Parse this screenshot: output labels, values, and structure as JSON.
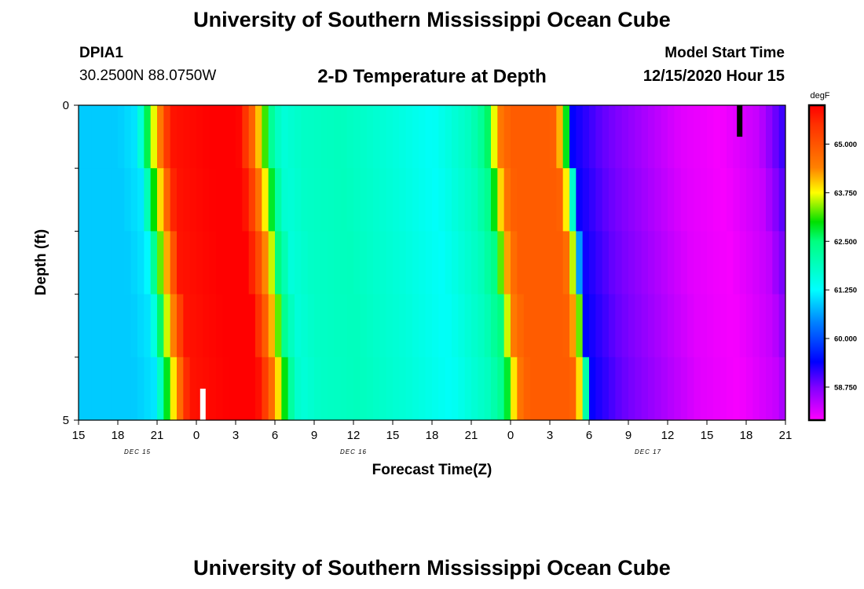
{
  "header": {
    "title": "University of Southern Mississippi Ocean Cube",
    "station_id": "DPIA1",
    "coordinates": "30.2500N 88.0750W",
    "subtitle": "2-D Temperature at Depth",
    "start_label": "Model Start Time",
    "start_value": "12/15/2020 Hour 15"
  },
  "footer": {
    "title": "University of Southern Mississippi Ocean Cube"
  },
  "chart_data": {
    "type": "heatmap",
    "title": "2-D Temperature at Depth",
    "xlabel": "Forecast Time(Z)",
    "ylabel": "Depth (ft)",
    "x_tick_labels": [
      "15",
      "18",
      "21",
      "0",
      "3",
      "6",
      "9",
      "12",
      "15",
      "18",
      "21",
      "0",
      "3",
      "6",
      "9",
      "12",
      "15",
      "18",
      "21"
    ],
    "x_hours_start": 15,
    "x_hours_step": 3,
    "x_range_hours": [
      0,
      54
    ],
    "date_labels": [
      {
        "label": "DEC 15",
        "hour": 4.5
      },
      {
        "label": "DEC 16",
        "hour": 21
      },
      {
        "label": "DEC 17",
        "hour": 43.5
      }
    ],
    "y_range": [
      0,
      5
    ],
    "y_tick_labels": [
      "0",
      "5"
    ],
    "y_minor_ticks": [
      1,
      2,
      3,
      4
    ],
    "depth_levels": [
      0,
      1,
      2,
      3,
      4,
      5
    ],
    "colorbar": {
      "unit": "degF",
      "min": 57.9,
      "max": 66.0,
      "tick_values": [
        58.75,
        60.0,
        61.25,
        62.5,
        63.75,
        65.0
      ],
      "tick_labels": [
        "58.750",
        "60.000",
        "61.250",
        "62.500",
        "63.750",
        "65.000"
      ],
      "colors": [
        {
          "v": 57.9,
          "c": "#ff00ff"
        },
        {
          "v": 58.75,
          "c": "#8000ff"
        },
        {
          "v": 59.4,
          "c": "#0000ff"
        },
        {
          "v": 60.4,
          "c": "#0080ff"
        },
        {
          "v": 61.25,
          "c": "#00ffff"
        },
        {
          "v": 62.5,
          "c": "#00ff80"
        },
        {
          "v": 63.0,
          "c": "#00e000"
        },
        {
          "v": 63.75,
          "c": "#ffff00"
        },
        {
          "v": 64.4,
          "c": "#ff8000"
        },
        {
          "v": 65.5,
          "c": "#ff3000"
        },
        {
          "v": 66.0,
          "c": "#ff0000"
        }
      ]
    },
    "time_profile": [
      {
        "h": 0,
        "t": 60.9
      },
      {
        "h": 3,
        "t": 60.9
      },
      {
        "h": 4.5,
        "t": 61.1
      },
      {
        "h": 5.2,
        "t": 62.6
      },
      {
        "h": 5.7,
        "t": 63.6
      },
      {
        "h": 6.3,
        "t": 64.6
      },
      {
        "h": 7,
        "t": 65.8
      },
      {
        "h": 10,
        "t": 66.0
      },
      {
        "h": 12.2,
        "t": 66.0
      },
      {
        "h": 13,
        "t": 65.2
      },
      {
        "h": 13.6,
        "t": 64.3
      },
      {
        "h": 14.1,
        "t": 63.5
      },
      {
        "h": 14.6,
        "t": 62.4
      },
      {
        "h": 15.5,
        "t": 61.6
      },
      {
        "h": 17,
        "t": 61.8
      },
      {
        "h": 20,
        "t": 61.9
      },
      {
        "h": 24,
        "t": 61.6
      },
      {
        "h": 27,
        "t": 61.3
      },
      {
        "h": 30,
        "t": 61.9
      },
      {
        "h": 31.2,
        "t": 62.5
      },
      {
        "h": 31.7,
        "t": 63.6
      },
      {
        "h": 32.2,
        "t": 64.5
      },
      {
        "h": 33,
        "t": 64.9
      },
      {
        "h": 36,
        "t": 64.9
      },
      {
        "h": 36.5,
        "t": 64.8
      },
      {
        "h": 36.8,
        "t": 64.0
      },
      {
        "h": 37.2,
        "t": 63.3
      },
      {
        "h": 37.7,
        "t": 59.4
      },
      {
        "h": 40,
        "t": 58.9
      },
      {
        "h": 43,
        "t": 58.5
      },
      {
        "h": 46,
        "t": 58.1
      },
      {
        "h": 49,
        "t": 57.95
      },
      {
        "h": 52,
        "t": 58.3
      },
      {
        "h": 54,
        "t": 59.2
      }
    ],
    "markers": [
      {
        "hour": 9.5,
        "depth_from": 4.5,
        "depth_to": 5,
        "color": "#ffffff"
      },
      {
        "hour": 50.5,
        "depth_from": 0,
        "depth_to": 0.5,
        "color": "#000000"
      }
    ]
  }
}
